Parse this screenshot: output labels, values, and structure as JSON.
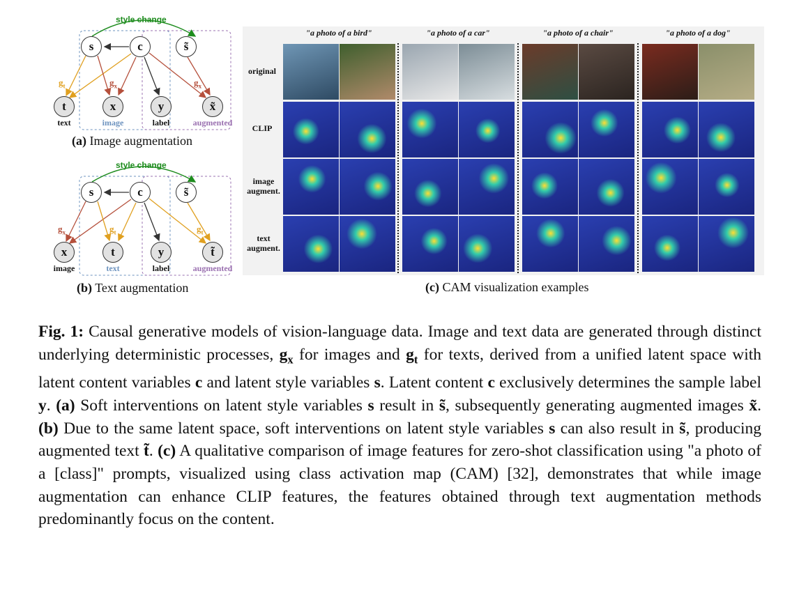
{
  "diagram_a": {
    "style_change": "style change",
    "nodes": {
      "s": "s",
      "c": "c",
      "s_tilde": "s̃",
      "t": "t",
      "x": "x",
      "y": "y",
      "x_tilde": "x̃"
    },
    "edge_labels": {
      "gt": "gt",
      "gx1": "gx",
      "gx2": "gx"
    },
    "tags": {
      "t": "text",
      "x": "image",
      "y": "label",
      "aug": "augmented"
    },
    "caption_letter": "(a)",
    "caption_text": "Image augmentation",
    "colors": {
      "image_tag": "#6d93bf",
      "aug_tag": "#9a70b0",
      "gt": "#e0a020",
      "gx": "#b5503c"
    }
  },
  "diagram_b": {
    "style_change": "style change",
    "nodes": {
      "s": "s",
      "c": "c",
      "s_tilde": "s̃",
      "x": "x",
      "t": "t",
      "y": "y",
      "t_tilde": "t̃"
    },
    "edge_labels": {
      "gx": "gx",
      "gt1": "gt",
      "gt2": "gt"
    },
    "tags": {
      "x": "image",
      "t": "text",
      "y": "label",
      "aug": "augmented"
    },
    "caption_letter": "(b)",
    "caption_text": "Text augmentation"
  },
  "cam": {
    "columns": [
      "\"a photo of a bird\"",
      "\"a photo of a car\"",
      "\"a photo of a chair\"",
      "\"a photo of a dog\""
    ],
    "rows": [
      "original",
      "CLIP",
      "image augment.",
      "text augment."
    ],
    "caption_letter": "(c)",
    "caption_text": "CAM visualization examples"
  },
  "figure_caption": {
    "label": "Fig. 1:",
    "p1": " Causal generative models of vision-language data. Image and text data are generated through distinct underlying deterministic processes, ",
    "gx": "gx",
    "p2": " for images and ",
    "gt": "gt",
    "p3": " for texts, derived from a unified latent space with latent content variables ",
    "c1": "c",
    "p4": " and latent style variables ",
    "s1": "s",
    "p5": ". Latent content ",
    "c2": "c",
    "p6": " exclusively determines the sample label ",
    "y": "y",
    "p7": ". ",
    "a": "(a)",
    "p8": " Soft interventions on latent style variables ",
    "s2": "s",
    "p9": " result in ",
    "st1": "s̃",
    "p10": ", subsequently generating augmented images ",
    "xt": "x̃",
    "p11": ". ",
    "b": "(b)",
    "p12": " Due to the same latent space, soft interventions on latent style variables ",
    "s3": "s",
    "p13": " can also result in ",
    "st2": "s̃",
    "p14": ", producing augmented text ",
    "tt": "t̃",
    "p15": ". ",
    "c": "(c)",
    "p16": " A qualitative comparison of image features for zero-shot classification using \"a photo of a [class]\" prompts, visualized using class activation map (CAM) [32], demonstrates that while image augmentation can enhance CLIP features, the features obtained through text augmentation methods predominantly focus on the content."
  }
}
